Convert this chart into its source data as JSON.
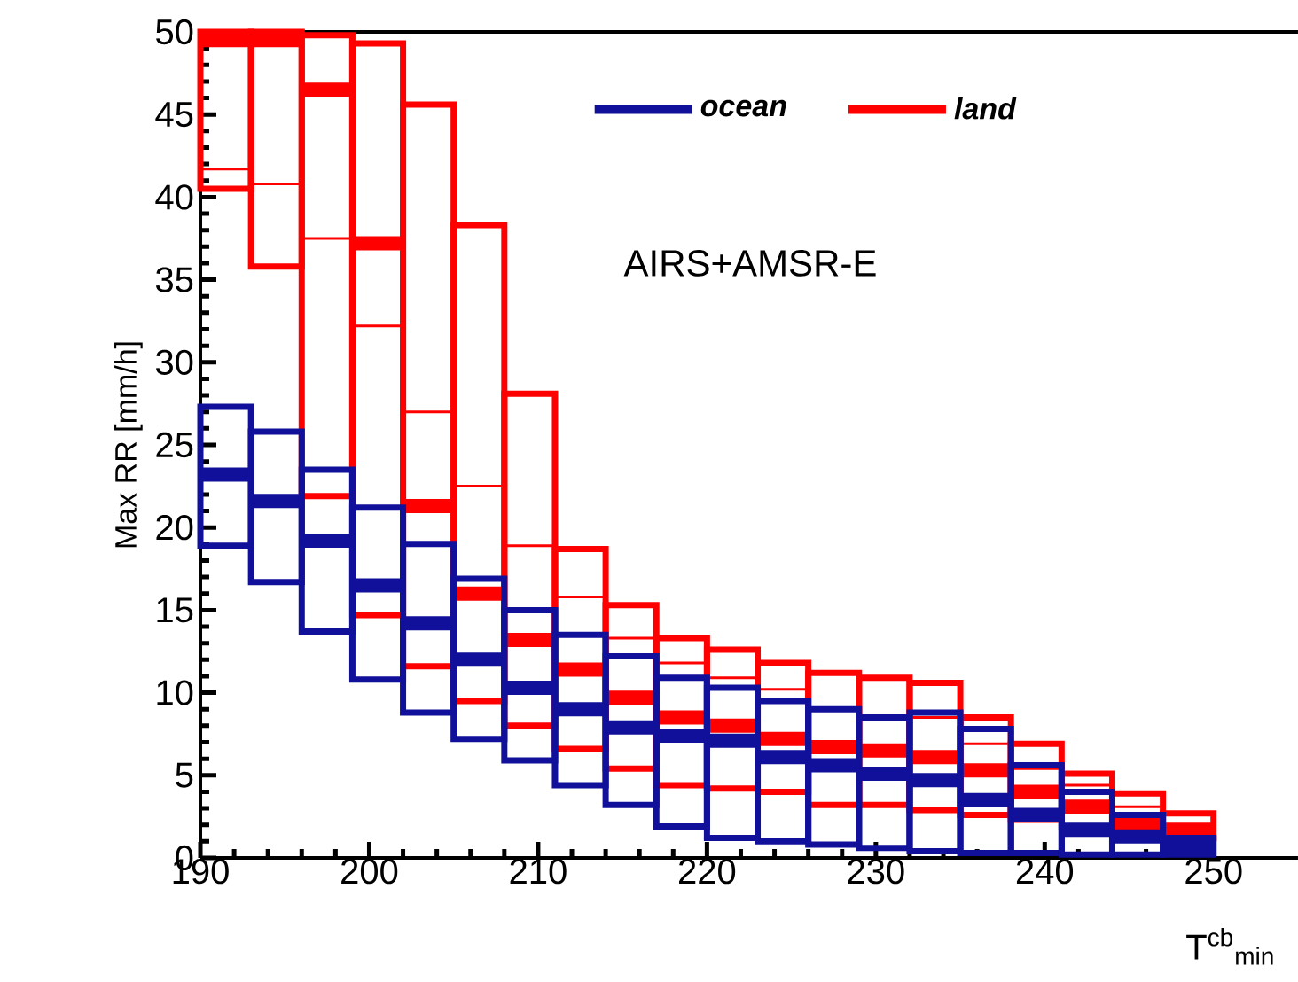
{
  "chart_data": {
    "type": "box",
    "ylabel": "Max RR [mm/h]",
    "xlabel": "T$^{cb}$$_{min}$",
    "annotations": [
      "AIRS+AMSR-E"
    ],
    "x": [
      191.5,
      194.5,
      197.5,
      200.5,
      203.5,
      206.5,
      209.5,
      212.5,
      215.5,
      218.5,
      221.5,
      224.5,
      227.5,
      230.5,
      233.5,
      236.5,
      239.5,
      242.5,
      245.5,
      248.5
    ],
    "xlim": [
      190,
      255
    ],
    "xticks": [
      190,
      200,
      210,
      220,
      230,
      240,
      250
    ],
    "ylim": [
      0,
      50
    ],
    "yticks": [
      0,
      5,
      10,
      15,
      20,
      25,
      30,
      35,
      40,
      45,
      50
    ],
    "legend": "top right",
    "series": [
      {
        "name": "ocean",
        "color": "#10109a",
        "boxes": [
          {
            "low": 18.9,
            "q1": 18.9,
            "median": 23.2,
            "q3": 27.3,
            "high": 27.3
          },
          {
            "low": 16.7,
            "q1": 16.7,
            "median": 21.6,
            "q3": 25.8,
            "high": 25.8
          },
          {
            "low": 13.7,
            "q1": 13.7,
            "median": 19.2,
            "q3": 23.5,
            "high": 23.5
          },
          {
            "low": 10.8,
            "q1": 10.8,
            "median": 16.5,
            "q3": 21.2,
            "high": 21.2
          },
          {
            "low": 8.8,
            "q1": 8.8,
            "median": 14.2,
            "q3": 19.0,
            "high": 19.0
          },
          {
            "low": 7.2,
            "q1": 7.2,
            "median": 12.0,
            "q3": 16.9,
            "high": 16.9
          },
          {
            "low": 5.9,
            "q1": 5.9,
            "median": 10.3,
            "q3": 15.0,
            "high": 15.0
          },
          {
            "low": 4.4,
            "q1": 4.4,
            "median": 9.0,
            "q3": 13.5,
            "high": 13.5
          },
          {
            "low": 3.2,
            "q1": 3.2,
            "median": 7.9,
            "q3": 12.2,
            "high": 12.2
          },
          {
            "low": 1.9,
            "q1": 1.9,
            "median": 7.4,
            "q3": 10.9,
            "high": 10.9
          },
          {
            "low": 1.2,
            "q1": 1.2,
            "median": 7.1,
            "q3": 10.3,
            "high": 10.3
          },
          {
            "low": 1.0,
            "q1": 1.0,
            "median": 6.1,
            "q3": 9.5,
            "high": 9.5
          },
          {
            "low": 0.8,
            "q1": 0.8,
            "median": 5.6,
            "q3": 9.0,
            "high": 9.0
          },
          {
            "low": 0.6,
            "q1": 0.6,
            "median": 5.1,
            "q3": 8.5,
            "high": 8.5
          },
          {
            "low": 0.4,
            "q1": 0.4,
            "median": 4.7,
            "q3": 8.8,
            "high": 8.8
          },
          {
            "low": 0.3,
            "q1": 0.3,
            "median": 3.5,
            "q3": 7.8,
            "high": 7.8
          },
          {
            "low": 0.3,
            "q1": 0.3,
            "median": 2.6,
            "q3": 5.6,
            "high": 5.6
          },
          {
            "low": 0.2,
            "q1": 0.2,
            "median": 1.7,
            "q3": 4.0,
            "high": 4.0
          },
          {
            "low": 0.2,
            "q1": 0.2,
            "median": 1.3,
            "q3": 2.6,
            "high": 2.6
          },
          {
            "low": 0.2,
            "q1": 0.2,
            "median": 0.8,
            "q3": 1.2,
            "high": 1.2
          }
        ]
      },
      {
        "name": "land",
        "color": "#ff0000",
        "boxes": [
          {
            "low": 40.5,
            "q1": 40.5,
            "median": 49.5,
            "q3": 50,
            "high": 50,
            "mean": 41.7
          },
          {
            "low": 35.8,
            "q1": 35.8,
            "median": 49.5,
            "q3": 50,
            "high": 50,
            "mean": 40.8
          },
          {
            "low": 21.9,
            "q1": 21.9,
            "median": 46.5,
            "q3": 49.8,
            "high": 49.8,
            "mean": 37.5
          },
          {
            "low": 14.7,
            "q1": 14.7,
            "median": 37.2,
            "q3": 49.3,
            "high": 49.3,
            "mean": 32.2
          },
          {
            "low": 11.6,
            "q1": 11.6,
            "median": 21.3,
            "q3": 45.6,
            "high": 45.6,
            "mean": 27.0
          },
          {
            "low": 9.5,
            "q1": 9.5,
            "median": 16.0,
            "q3": 38.3,
            "high": 38.3,
            "mean": 22.5
          },
          {
            "low": 8.0,
            "q1": 8.0,
            "median": 13.2,
            "q3": 28.1,
            "high": 28.1,
            "mean": 18.9
          },
          {
            "low": 6.6,
            "q1": 6.6,
            "median": 11.4,
            "q3": 18.7,
            "high": 18.7,
            "mean": 15.8
          },
          {
            "low": 5.4,
            "q1": 5.4,
            "median": 9.7,
            "q3": 15.3,
            "high": 15.3,
            "mean": 13.3
          },
          {
            "low": 4.4,
            "q1": 4.4,
            "median": 8.5,
            "q3": 13.3,
            "high": 13.3,
            "mean": 11.8
          },
          {
            "low": 4.2,
            "q1": 4.2,
            "median": 8.0,
            "q3": 12.6,
            "high": 12.6,
            "mean": 10.9
          },
          {
            "low": 4.0,
            "q1": 4.0,
            "median": 7.2,
            "q3": 11.8,
            "high": 11.8,
            "mean": 10.2
          },
          {
            "low": 3.2,
            "q1": 3.2,
            "median": 6.7,
            "q3": 11.2,
            "high": 11.2,
            "mean": 9.0
          },
          {
            "low": 3.2,
            "q1": 3.2,
            "median": 6.5,
            "q3": 10.9,
            "high": 10.9,
            "mean": 8.6
          },
          {
            "low": 2.9,
            "q1": 2.9,
            "median": 6.1,
            "q3": 10.6,
            "high": 10.6,
            "mean": 8.5
          },
          {
            "low": 2.6,
            "q1": 2.6,
            "median": 5.3,
            "q3": 8.5,
            "high": 8.5,
            "mean": 6.9
          },
          {
            "low": 2.3,
            "q1": 2.3,
            "median": 4.0,
            "q3": 6.9,
            "high": 6.9,
            "mean": 5.4
          },
          {
            "low": 1.9,
            "q1": 1.9,
            "median": 3.1,
            "q3": 5.1,
            "high": 5.1,
            "mean": 4.4
          },
          {
            "low": 1.6,
            "q1": 1.6,
            "median": 2.2,
            "q3": 3.9,
            "high": 3.9,
            "mean": 3.1
          },
          {
            "low": 1.2,
            "q1": 1.2,
            "median": 1.7,
            "q3": 2.7,
            "high": 2.7,
            "mean": 1.9
          }
        ]
      }
    ]
  }
}
